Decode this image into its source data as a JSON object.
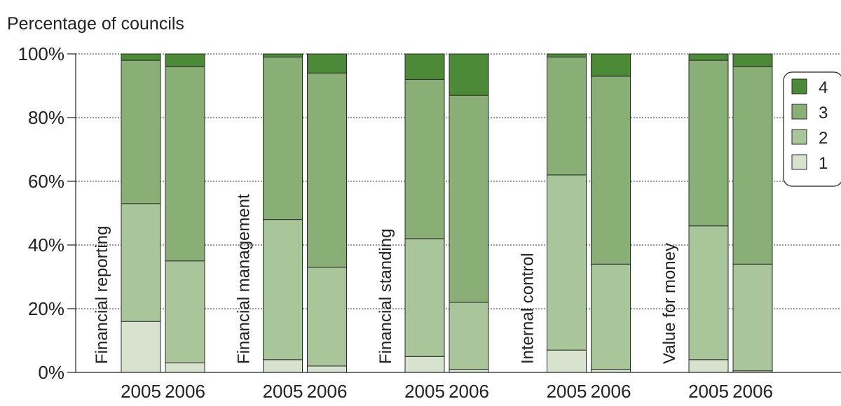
{
  "chart_data": {
    "type": "bar",
    "stacked": true,
    "ylabel": "Percentage of councils",
    "ylim": [
      0,
      100
    ],
    "yticks": [
      "0%",
      "20%",
      "40%",
      "60%",
      "80%",
      "100%"
    ],
    "grid": "horizontal dotted",
    "legend_position": "right",
    "groups": [
      {
        "label": "Financial reporting",
        "bars": [
          {
            "year": "2005",
            "values": [
              16,
              37,
              45,
              2
            ]
          },
          {
            "year": "2006",
            "values": [
              3,
              32,
              61,
              4
            ]
          }
        ]
      },
      {
        "label": "Financial management",
        "bars": [
          {
            "year": "2005",
            "values": [
              4,
              44,
              51,
              1
            ]
          },
          {
            "year": "2006",
            "values": [
              2,
              31,
              61,
              6
            ]
          }
        ]
      },
      {
        "label": "Financial standing",
        "bars": [
          {
            "year": "2005",
            "values": [
              5,
              37,
              50,
              8
            ]
          },
          {
            "year": "2006",
            "values": [
              1,
              21,
              65,
              13
            ]
          }
        ]
      },
      {
        "label": "Internal control",
        "bars": [
          {
            "year": "2005",
            "values": [
              7,
              55,
              37,
              1
            ]
          },
          {
            "year": "2006",
            "values": [
              1,
              33,
              59,
              7
            ]
          }
        ]
      },
      {
        "label": "Value for money",
        "bars": [
          {
            "year": "2005",
            "values": [
              4,
              42,
              52,
              2
            ]
          },
          {
            "year": "2006",
            "values": [
              0.5,
              33.5,
              62,
              4
            ]
          }
        ]
      }
    ],
    "series": [
      {
        "name": "1",
        "color": "#d7e3cf"
      },
      {
        "name": "2",
        "color": "#a9c69a"
      },
      {
        "name": "3",
        "color": "#8aaf76"
      },
      {
        "name": "4",
        "color": "#4d8a38"
      }
    ],
    "legend_order": [
      "4",
      "3",
      "2",
      "1"
    ]
  }
}
